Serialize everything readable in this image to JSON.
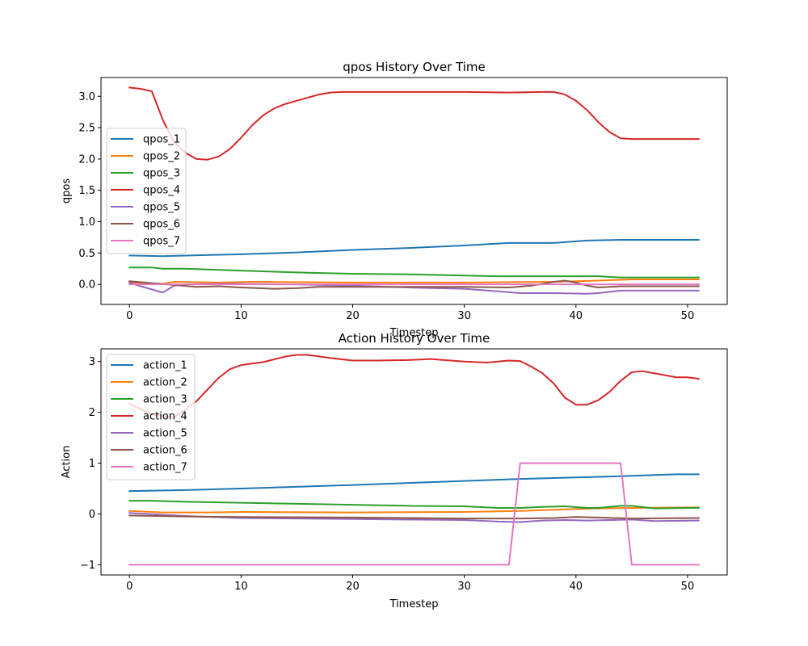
{
  "chart_data": [
    {
      "type": "line",
      "title": "qpos History Over Time",
      "xlabel": "Timestep",
      "ylabel": "qpos",
      "xlim": [
        -2.55,
        53.55
      ],
      "ylim": [
        -0.32,
        3.3
      ],
      "xticks": [
        0,
        10,
        20,
        30,
        40,
        50
      ],
      "yticks": [
        0.0,
        0.5,
        1.0,
        1.5,
        2.0,
        2.5,
        3.0
      ],
      "yticklabels": [
        "0.0",
        "0.5",
        "1.0",
        "1.5",
        "2.0",
        "2.5",
        "3.0"
      ],
      "legend_location": "center-left",
      "series": [
        {
          "name": "qpos_1",
          "color": "#1f77b4",
          "points": [
            [
              0,
              0.46
            ],
            [
              3,
              0.45
            ],
            [
              5,
              0.46
            ],
            [
              10,
              0.48
            ],
            [
              15,
              0.51
            ],
            [
              20,
              0.55
            ],
            [
              25,
              0.58
            ],
            [
              30,
              0.62
            ],
            [
              34,
              0.66
            ],
            [
              38,
              0.66
            ],
            [
              41,
              0.7
            ],
            [
              44,
              0.71
            ],
            [
              51,
              0.71
            ]
          ]
        },
        {
          "name": "qpos_2",
          "color": "#ff7f0e",
          "points": [
            [
              0,
              0.03
            ],
            [
              3,
              0.01
            ],
            [
              4,
              0.04
            ],
            [
              8,
              0.03
            ],
            [
              11,
              0.04
            ],
            [
              20,
              0.03
            ],
            [
              30,
              0.03
            ],
            [
              38,
              0.04
            ],
            [
              42,
              0.06
            ],
            [
              45,
              0.08
            ],
            [
              51,
              0.08
            ]
          ]
        },
        {
          "name": "qpos_3",
          "color": "#2ca02c",
          "points": [
            [
              0,
              0.27
            ],
            [
              2,
              0.27
            ],
            [
              3,
              0.25
            ],
            [
              5,
              0.25
            ],
            [
              10,
              0.22
            ],
            [
              15,
              0.19
            ],
            [
              20,
              0.17
            ],
            [
              25,
              0.16
            ],
            [
              30,
              0.14
            ],
            [
              33,
              0.13
            ],
            [
              38,
              0.13
            ],
            [
              42,
              0.13
            ],
            [
              44,
              0.11
            ],
            [
              51,
              0.11
            ]
          ]
        },
        {
          "name": "qpos_4",
          "color": "#d62728",
          "points": [
            [
              0,
              3.14
            ],
            [
              1,
              3.12
            ],
            [
              2,
              3.08
            ],
            [
              3,
              2.62
            ],
            [
              4,
              2.27
            ],
            [
              5,
              2.1
            ],
            [
              6,
              2.0
            ],
            [
              7,
              1.99
            ],
            [
              8,
              2.04
            ],
            [
              9,
              2.16
            ],
            [
              10,
              2.34
            ],
            [
              11,
              2.54
            ],
            [
              12,
              2.7
            ],
            [
              13,
              2.81
            ],
            [
              14,
              2.88
            ],
            [
              15,
              2.93
            ],
            [
              16,
              2.98
            ],
            [
              17,
              3.03
            ],
            [
              18,
              3.06
            ],
            [
              19,
              3.07
            ],
            [
              20,
              3.07
            ],
            [
              25,
              3.07
            ],
            [
              30,
              3.07
            ],
            [
              34,
              3.06
            ],
            [
              37,
              3.07
            ],
            [
              38,
              3.07
            ],
            [
              39,
              3.03
            ],
            [
              40,
              2.93
            ],
            [
              41,
              2.78
            ],
            [
              42,
              2.59
            ],
            [
              43,
              2.43
            ],
            [
              44,
              2.33
            ],
            [
              45,
              2.32
            ],
            [
              51,
              2.32
            ]
          ]
        },
        {
          "name": "qpos_5",
          "color": "#9467bd",
          "points": [
            [
              0,
              0.03
            ],
            [
              1,
              -0.03
            ],
            [
              2,
              -0.08
            ],
            [
              3,
              -0.13
            ],
            [
              4,
              -0.02
            ],
            [
              5,
              0.0
            ],
            [
              8,
              0.01
            ],
            [
              15,
              0.0
            ],
            [
              20,
              -0.02
            ],
            [
              25,
              -0.05
            ],
            [
              30,
              -0.07
            ],
            [
              33,
              -0.11
            ],
            [
              35,
              -0.14
            ],
            [
              38,
              -0.14
            ],
            [
              41,
              -0.15
            ],
            [
              42,
              -0.14
            ],
            [
              44,
              -0.1
            ],
            [
              51,
              -0.1
            ]
          ]
        },
        {
          "name": "qpos_6",
          "color": "#8c564b",
          "points": [
            [
              0,
              0.05
            ],
            [
              2,
              0.02
            ],
            [
              4,
              -0.01
            ],
            [
              6,
              -0.04
            ],
            [
              8,
              -0.03
            ],
            [
              10,
              -0.05
            ],
            [
              13,
              -0.07
            ],
            [
              15,
              -0.06
            ],
            [
              17,
              -0.04
            ],
            [
              20,
              -0.04
            ],
            [
              25,
              -0.04
            ],
            [
              30,
              -0.04
            ],
            [
              34,
              -0.05
            ],
            [
              36,
              -0.02
            ],
            [
              38,
              0.04
            ],
            [
              39,
              0.06
            ],
            [
              40,
              0.03
            ],
            [
              41,
              -0.02
            ],
            [
              42,
              -0.05
            ],
            [
              44,
              -0.03
            ],
            [
              51,
              -0.03
            ]
          ]
        },
        {
          "name": "qpos_7",
          "color": "#e377c2",
          "points": [
            [
              0,
              0.0
            ],
            [
              51,
              0.0
            ]
          ]
        }
      ]
    },
    {
      "type": "line",
      "title": "Action History Over Time",
      "xlabel": "Timestep",
      "ylabel": "Action",
      "xlim": [
        -2.55,
        53.55
      ],
      "ylim": [
        -1.2,
        3.25
      ],
      "xticks": [
        0,
        10,
        20,
        30,
        40,
        50
      ],
      "yticks": [
        -1,
        0,
        1,
        2,
        3
      ],
      "yticklabels": [
        "−1",
        "0",
        "1",
        "2",
        "3"
      ],
      "legend_location": "upper-left",
      "series": [
        {
          "name": "action_1",
          "color": "#1f77b4",
          "points": [
            [
              0,
              0.45
            ],
            [
              5,
              0.47
            ],
            [
              10,
              0.5
            ],
            [
              20,
              0.57
            ],
            [
              30,
              0.65
            ],
            [
              35,
              0.69
            ],
            [
              40,
              0.72
            ],
            [
              45,
              0.75
            ],
            [
              49,
              0.78
            ],
            [
              51,
              0.78
            ]
          ]
        },
        {
          "name": "action_2",
          "color": "#ff7f0e",
          "points": [
            [
              0,
              0.06
            ],
            [
              3,
              0.03
            ],
            [
              7,
              0.03
            ],
            [
              10,
              0.04
            ],
            [
              20,
              0.03
            ],
            [
              30,
              0.04
            ],
            [
              35,
              0.06
            ],
            [
              40,
              0.1
            ],
            [
              45,
              0.12
            ],
            [
              51,
              0.13
            ]
          ]
        },
        {
          "name": "action_3",
          "color": "#2ca02c",
          "points": [
            [
              0,
              0.26
            ],
            [
              2,
              0.26
            ],
            [
              5,
              0.24
            ],
            [
              10,
              0.22
            ],
            [
              15,
              0.2
            ],
            [
              20,
              0.18
            ],
            [
              25,
              0.16
            ],
            [
              30,
              0.15
            ],
            [
              33,
              0.12
            ],
            [
              35,
              0.12
            ],
            [
              37,
              0.14
            ],
            [
              39,
              0.15
            ],
            [
              41,
              0.12
            ],
            [
              42,
              0.12
            ],
            [
              44,
              0.16
            ],
            [
              45,
              0.16
            ],
            [
              47,
              0.11
            ],
            [
              51,
              0.12
            ]
          ]
        },
        {
          "name": "action_4",
          "color": "#d62728",
          "points": [
            [
              0,
              2.17
            ],
            [
              2,
              1.96
            ],
            [
              3,
              1.93
            ],
            [
              4,
              1.9
            ],
            [
              5,
              2.05
            ],
            [
              6,
              2.22
            ],
            [
              7,
              2.45
            ],
            [
              8,
              2.68
            ],
            [
              9,
              2.85
            ],
            [
              10,
              2.93
            ],
            [
              12,
              2.99
            ],
            [
              14,
              3.1
            ],
            [
              15,
              3.13
            ],
            [
              16,
              3.13
            ],
            [
              18,
              3.07
            ],
            [
              20,
              3.02
            ],
            [
              22,
              3.02
            ],
            [
              25,
              3.03
            ],
            [
              27,
              3.05
            ],
            [
              30,
              3.0
            ],
            [
              32,
              2.98
            ],
            [
              34,
              3.02
            ],
            [
              35,
              3.01
            ],
            [
              36,
              2.9
            ],
            [
              37,
              2.77
            ],
            [
              38,
              2.57
            ],
            [
              39,
              2.29
            ],
            [
              40,
              2.15
            ],
            [
              41,
              2.15
            ],
            [
              42,
              2.24
            ],
            [
              43,
              2.4
            ],
            [
              44,
              2.62
            ],
            [
              45,
              2.79
            ],
            [
              46,
              2.81
            ],
            [
              48,
              2.73
            ],
            [
              49,
              2.69
            ],
            [
              50,
              2.69
            ],
            [
              51,
              2.66
            ]
          ]
        },
        {
          "name": "action_5",
          "color": "#9467bd",
          "points": [
            [
              0,
              0.02
            ],
            [
              5,
              -0.04
            ],
            [
              10,
              -0.08
            ],
            [
              20,
              -0.1
            ],
            [
              30,
              -0.12
            ],
            [
              33,
              -0.15
            ],
            [
              35,
              -0.16
            ],
            [
              37,
              -0.13
            ],
            [
              39,
              -0.12
            ],
            [
              41,
              -0.13
            ],
            [
              43,
              -0.12
            ],
            [
              45,
              -0.11
            ],
            [
              47,
              -0.14
            ],
            [
              51,
              -0.13
            ]
          ]
        },
        {
          "name": "action_6",
          "color": "#8c564b",
          "points": [
            [
              0,
              -0.03
            ],
            [
              5,
              -0.05
            ],
            [
              10,
              -0.06
            ],
            [
              20,
              -0.07
            ],
            [
              30,
              -0.09
            ],
            [
              35,
              -0.09
            ],
            [
              38,
              -0.08
            ],
            [
              40,
              -0.06
            ],
            [
              42,
              -0.07
            ],
            [
              45,
              -0.09
            ],
            [
              51,
              -0.08
            ]
          ]
        },
        {
          "name": "action_7",
          "color": "#e377c2",
          "points": [
            [
              0,
              -1.0
            ],
            [
              34,
              -1.0
            ],
            [
              35,
              1.0
            ],
            [
              44,
              1.0
            ],
            [
              45,
              -1.0
            ],
            [
              51,
              -1.0
            ]
          ]
        }
      ]
    }
  ]
}
